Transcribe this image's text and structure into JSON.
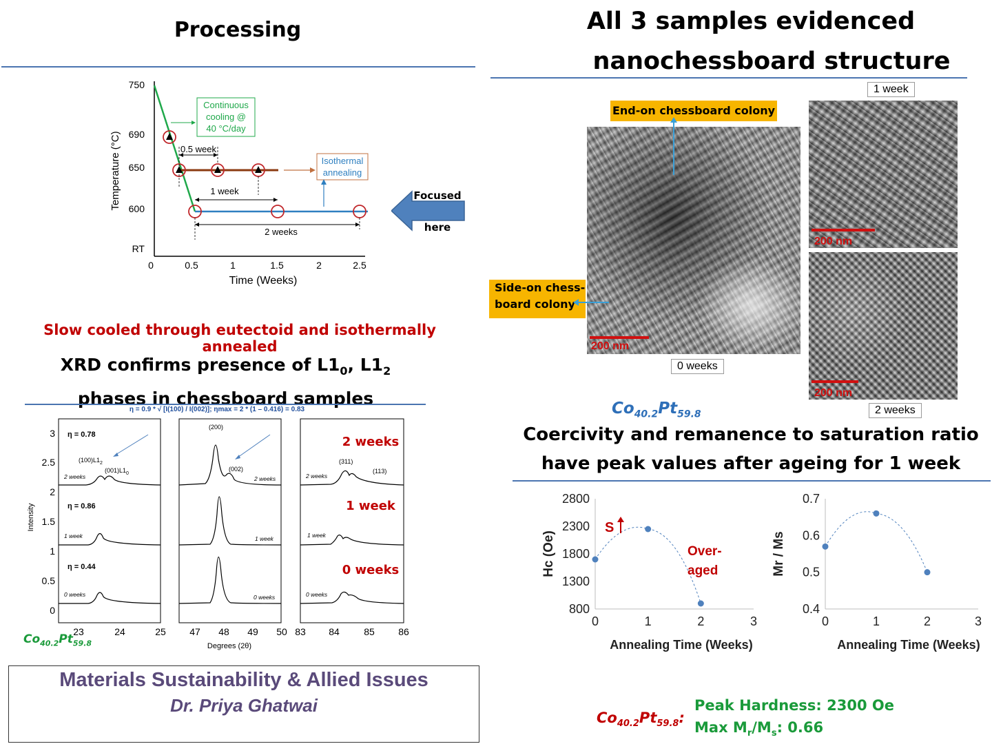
{
  "left": {
    "processing_title": "Processing",
    "slow_cooled_text": "Slow cooled through eutectoid and isothermally annealed",
    "xrd_title_line1_pre": "XRD confirms presence of L1",
    "xrd_title_line1_sub1": "0",
    "xrd_title_line1_mid": ", L1",
    "xrd_title_line1_sub2": "2",
    "xrd_title_line2": "phases in chessboard samples",
    "focused_label_1": "Focused",
    "focused_label_2": "here"
  },
  "processing_chart": {
    "ylabel": "Temperature (°C)",
    "xlabel": "Time (Weeks)",
    "y_ticks": [
      "750",
      "690",
      "650",
      "600",
      "RT"
    ],
    "x_ticks": [
      "0",
      "0.5",
      "1",
      "1.5",
      "2",
      "2.5"
    ],
    "continuous_cooling": [
      "Continuous",
      "cooling @",
      "40 °C/day"
    ],
    "isothermal": [
      "Isothermal",
      "annealing"
    ],
    "half_week": "0.5 week",
    "one_week": "1 week",
    "two_weeks": "2 weeks"
  },
  "xrd": {
    "formula": "η = 0.9 * √ [I(100) / I(002)]; ηmax = 2 * (1 – 0.416) = 0.83",
    "ylabel": "Intensity",
    "xlabel": "Degrees (2θ)",
    "y_ticks": [
      "3",
      "2.5",
      "2",
      "1.5",
      "1",
      "0.5",
      "0"
    ],
    "panel1_ticks": [
      "23",
      "24",
      "25"
    ],
    "panel2_ticks": [
      "47",
      "48",
      "49",
      "50"
    ],
    "panel3_ticks": [
      "83",
      "84",
      "85",
      "86"
    ],
    "eta_values": [
      "η = 0.78",
      "η = 0.86",
      "η = 0.44"
    ],
    "trace_labels": [
      "2 weeks",
      "1 week",
      "0 weeks"
    ],
    "right_labels": [
      "2 weeks",
      "1 week",
      "0 weeks"
    ],
    "peaks_p1": [
      "(100)L1",
      "(001)L1"
    ],
    "peaks_p1_subs": [
      "2",
      "0"
    ],
    "peak_200": "(200)",
    "peak_002": "(002)",
    "peak_311": "(311)",
    "peak_113": "(113)",
    "composition": {
      "co": "Co",
      "co_sub": "40.2",
      "pt": "Pt",
      "pt_sub": "59.8"
    }
  },
  "footer": {
    "line1": "Materials Sustainability & Allied Issues",
    "line2": "Dr. Priya Ghatwai"
  },
  "right": {
    "title_line1": "All 3 samples evidenced",
    "title_line2": "nanochessboard structure",
    "end_on_label": "End-on chessboard colony",
    "side_on_label_1": "Side-on chess-",
    "side_on_label_2": "board colony",
    "scale_label": "200 nm",
    "label_0_weeks": "0 weeks",
    "label_1_week": "1 week",
    "label_2_weeks": "2 weeks",
    "composition": {
      "co": "Co",
      "co_sub": "40.2",
      "pt": "Pt",
      "pt_sub": "59.8"
    },
    "coercivity_title_1": "Coercivity and remanence to saturation ratio",
    "coercivity_title_2": "have peak values after ageing for 1 week",
    "summary_peak": "Peak Hardness: 2300 Oe",
    "summary_max_pre": "Max M",
    "summary_max_sub1": "r",
    "summary_max_mid": "/M",
    "summary_max_sub2": "s",
    "summary_max_post": ": 0.66"
  },
  "chart_data": [
    {
      "type": "scatter",
      "ylabel": "Hc (Oe)",
      "xlabel": "Annealing Time (Weeks)",
      "x": [
        0,
        1,
        2
      ],
      "y": [
        1700,
        2250,
        900
      ],
      "xlim": [
        0,
        3
      ],
      "ylim": [
        800,
        2800
      ],
      "y_ticks": [
        800,
        1300,
        1800,
        2300,
        2800
      ],
      "x_ticks": [
        0,
        1,
        2,
        3
      ],
      "annotations": [
        "S",
        "Over-",
        "aged"
      ],
      "color": "#4f81bd"
    },
    {
      "type": "scatter",
      "ylabel": "Mr / Ms",
      "xlabel": "Annealing Time (Weeks)",
      "x": [
        0,
        1,
        2
      ],
      "y": [
        0.57,
        0.66,
        0.5
      ],
      "xlim": [
        0,
        3
      ],
      "ylim": [
        0.4,
        0.7
      ],
      "y_ticks": [
        0.4,
        0.5,
        0.6,
        0.7
      ],
      "x_ticks": [
        0,
        1,
        2,
        3
      ],
      "color": "#4f81bd"
    }
  ]
}
